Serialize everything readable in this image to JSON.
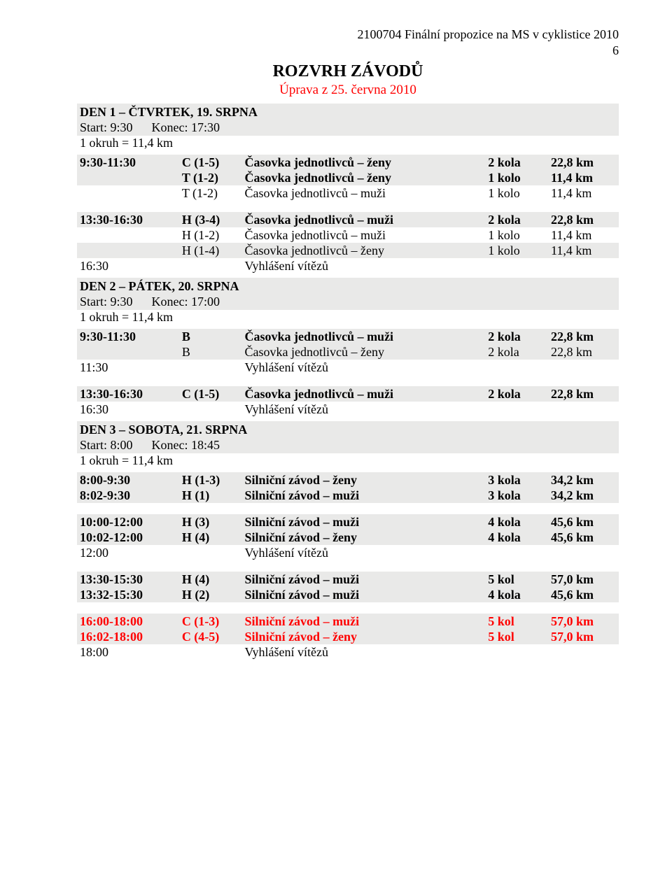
{
  "header": {
    "doc_ref": "2100704 Finální propozice na MS v cyklistice 2010",
    "page_number": "6",
    "title": "ROZVRH ZÁVODŮ",
    "subtitle": "Úprava z 25. června 2010"
  },
  "colors": {
    "shade_bg": "#e9e9e8",
    "red": "#ff0000",
    "text": "#000000",
    "bg": "#ffffff"
  },
  "days": [
    {
      "title": "DEN 1 – ČTVRTEK, 19. SRPNA",
      "start_label": "Start: 9:30",
      "end_label": "Konec: 17:30",
      "okruh": "1 okruh = 11,4 km",
      "blocks": [
        {
          "rows": [
            {
              "shade": true,
              "bold": true,
              "time": "9:30-11:30",
              "code": "C (1-5)",
              "event": "Časovka jednotlivců – ženy",
              "laps": "2 kola",
              "dist": "22,8 km"
            },
            {
              "shade": true,
              "bold": true,
              "time": "",
              "code": "T (1-2)",
              "event": "Časovka jednotlivců – ženy",
              "laps": "1 kolo",
              "dist": "11,4 km"
            },
            {
              "shade": false,
              "bold": false,
              "time": "",
              "code": "T (1-2)",
              "event": "Časovka jednotlivců – muži",
              "laps": "1 kolo",
              "dist": "11,4 km"
            }
          ]
        },
        {
          "spacer": true,
          "rows": [
            {
              "shade": true,
              "bold": true,
              "time": "13:30-16:30",
              "code": "H (3-4)",
              "event": "Časovka jednotlivců – muži",
              "laps": "2 kola",
              "dist": "22,8 km"
            },
            {
              "shade": false,
              "bold": false,
              "time": "",
              "code": "H (1-2)",
              "event": "Časovka jednotlivců – muži",
              "laps": "1 kolo",
              "dist": "11,4 km"
            },
            {
              "shade": true,
              "bold": false,
              "time": "",
              "code": "H (1-4)",
              "event": "Časovka jednotlivců – ženy",
              "laps": "1 kolo",
              "dist": "11,4 km"
            },
            {
              "shade": false,
              "bold": false,
              "time": "16:30",
              "code": "",
              "event": "Vyhlášení vítězů",
              "laps": "",
              "dist": ""
            }
          ]
        }
      ]
    },
    {
      "title": "DEN 2 – PÁTEK, 20. SRPNA",
      "start_label": "Start: 9:30",
      "end_label": "Konec: 17:00",
      "okruh": "1 okruh = 11,4 km",
      "blocks": [
        {
          "rows": [
            {
              "shade": true,
              "bold": true,
              "time": "9:30-11:30",
              "code": "B",
              "event": "Časovka jednotlivců – muži",
              "laps": "2 kola",
              "dist": "22,8 km"
            },
            {
              "shade": true,
              "bold": false,
              "time": "",
              "code": "B",
              "event": "Časovka jednotlivců – ženy",
              "laps": "2 kola",
              "dist": "22,8 km"
            },
            {
              "shade": false,
              "bold": false,
              "time": "11:30",
              "code": "",
              "event": "Vyhlášení vítězů",
              "laps": "",
              "dist": ""
            }
          ]
        },
        {
          "spacer": true,
          "rows": [
            {
              "shade": true,
              "bold": true,
              "time": "13:30-16:30",
              "code": "C (1-5)",
              "event": "Časovka jednotlivců – muži",
              "laps": "2 kola",
              "dist": "22,8 km"
            },
            {
              "shade": false,
              "bold": false,
              "time": "16:30",
              "code": "",
              "event": "Vyhlášení vítězů",
              "laps": "",
              "dist": ""
            }
          ]
        }
      ]
    },
    {
      "title": "DEN 3 – SOBOTA, 21. SRPNA",
      "start_label": "Start: 8:00",
      "end_label": "Konec: 18:45",
      "okruh": "1 okruh = 11,4 km",
      "blocks": [
        {
          "rows": [
            {
              "shade": true,
              "bold": true,
              "time": "8:00-9:30",
              "code": "H (1-3)",
              "event": "Silniční závod – ženy",
              "laps": "3 kola",
              "dist": "34,2 km"
            },
            {
              "shade": true,
              "bold": true,
              "time": "8:02-9:30",
              "code": "H (1)",
              "event": "Silniční závod – muži",
              "laps": "3 kola",
              "dist": "34,2 km"
            }
          ]
        },
        {
          "spacer": true,
          "rows": [
            {
              "shade": true,
              "bold": true,
              "time": "10:00-12:00",
              "code": "H (3)",
              "event": "Silniční závod – muži",
              "laps": "4 kola",
              "dist": "45,6 km"
            },
            {
              "shade": true,
              "bold": true,
              "time": "10:02-12:00",
              "code": "H (4)",
              "event": "Silniční závod – ženy",
              "laps": "4 kola",
              "dist": "45,6 km"
            },
            {
              "shade": false,
              "bold": false,
              "time": "12:00",
              "code": "",
              "event": "Vyhlášení vítězů",
              "laps": "",
              "dist": ""
            }
          ]
        },
        {
          "spacer": true,
          "rows": [
            {
              "shade": true,
              "bold": true,
              "time": "13:30-15:30",
              "code": "H (4)",
              "event": "Silniční závod – muži",
              "laps": "5 kol",
              "dist": "57,0 km"
            },
            {
              "shade": true,
              "bold": true,
              "time": "13:32-15:30",
              "code": "H (2)",
              "event": "Silniční závod – muži",
              "laps": "4 kola",
              "dist": "45,6 km"
            }
          ]
        },
        {
          "spacer": true,
          "rows": [
            {
              "shade": true,
              "bold": true,
              "red": true,
              "time": "16:00-18:00",
              "code": "C (1-3)",
              "event": "Silniční závod – muži",
              "laps": "5 kol",
              "dist": "57,0 km"
            },
            {
              "shade": true,
              "bold": true,
              "red": true,
              "time": "16:02-18:00",
              "code": "C (4-5)",
              "event": "Silniční závod – ženy",
              "laps": "5 kol",
              "dist": "57,0 km"
            },
            {
              "shade": false,
              "bold": false,
              "time": "18:00",
              "code": "",
              "event": "Vyhlášení vítězů",
              "laps": "",
              "dist": ""
            }
          ]
        }
      ]
    }
  ]
}
